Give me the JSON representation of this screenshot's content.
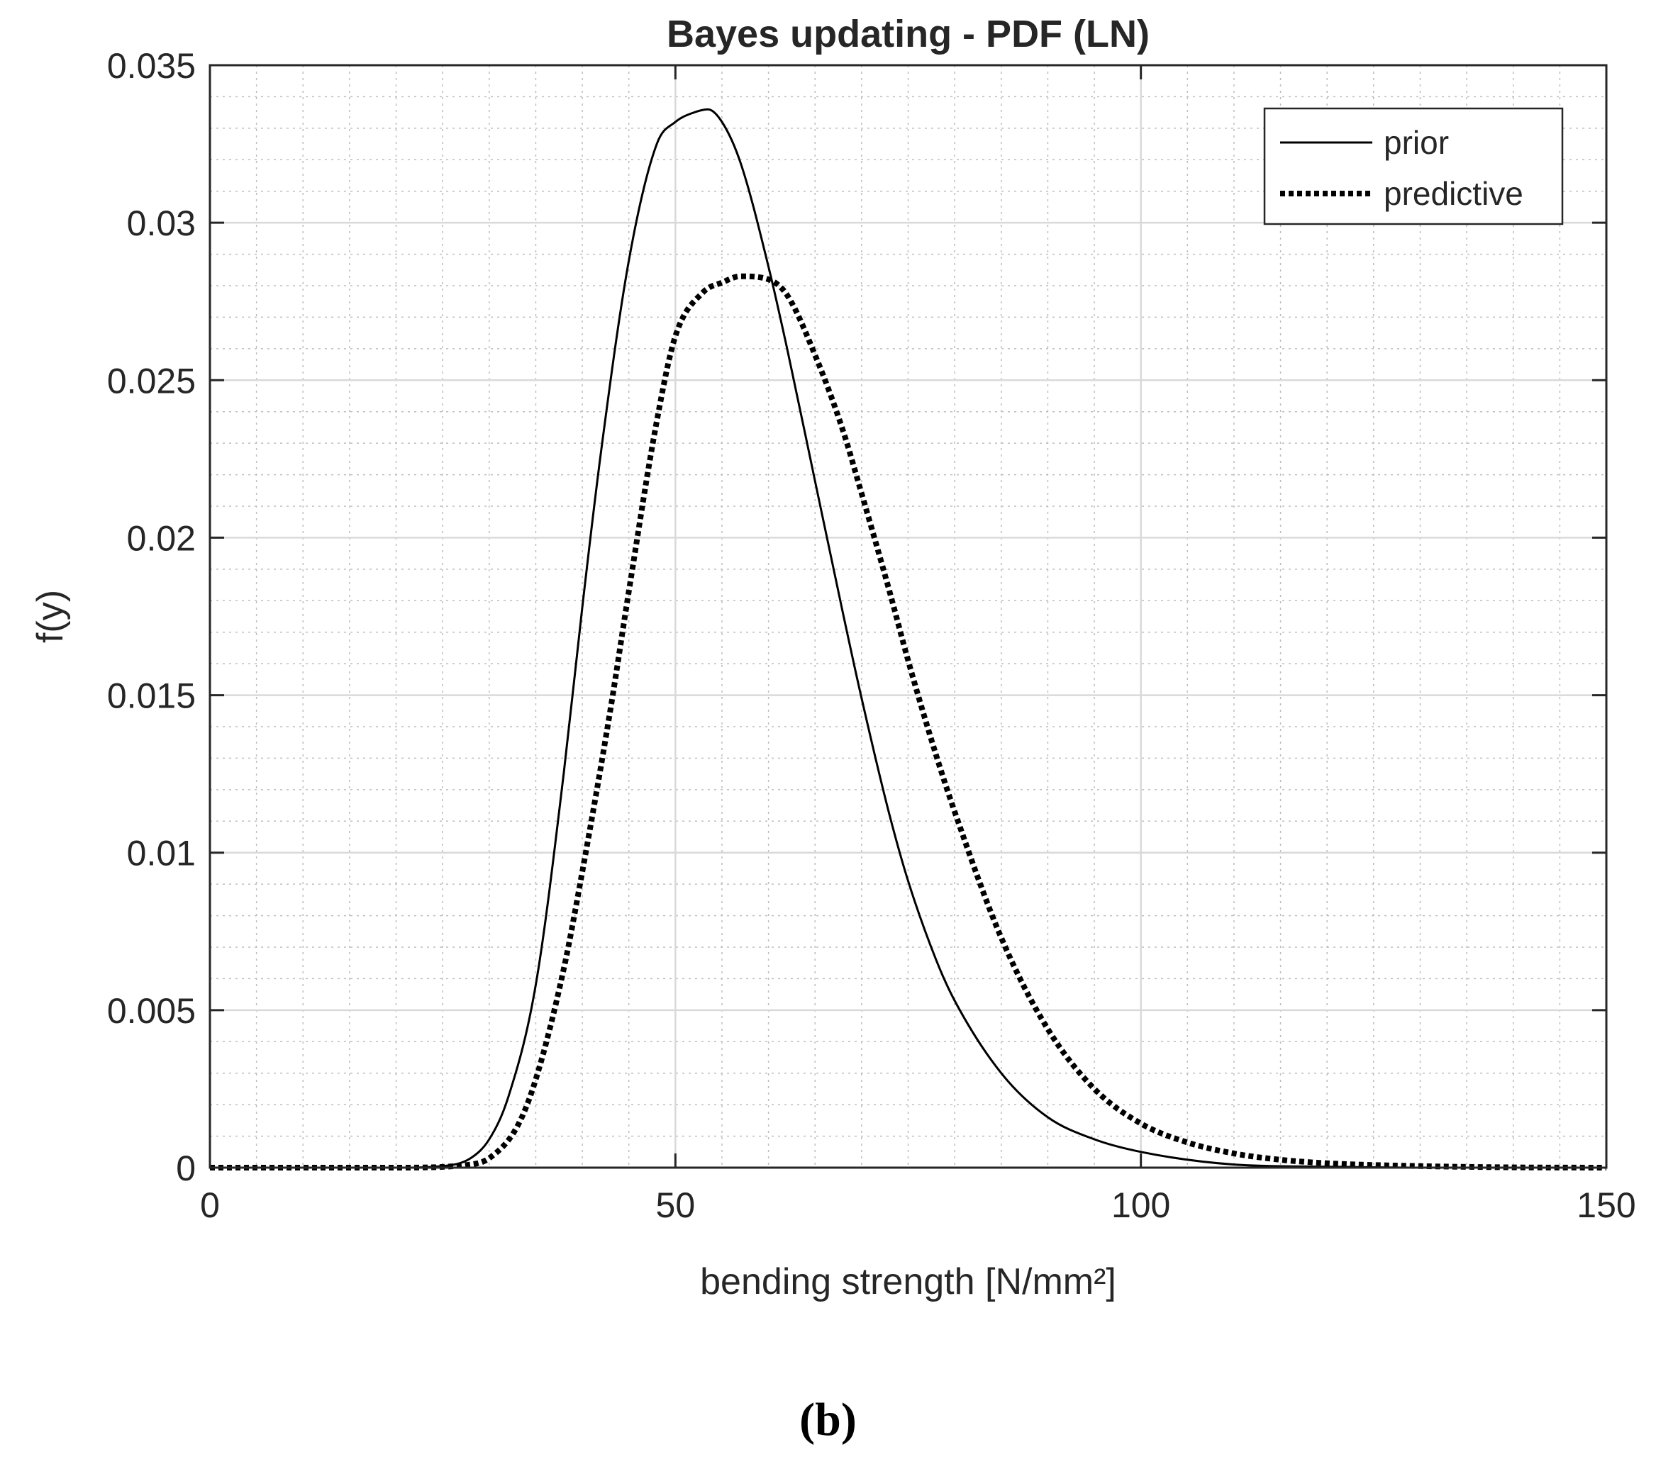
{
  "chart_data": {
    "type": "line",
    "title": "Bayes updating - PDF (LN)",
    "xlabel": "bending strength [N/mm²]",
    "ylabel": "f(y)",
    "xlim": [
      0,
      150
    ],
    "ylim": [
      0,
      0.035
    ],
    "x_ticks": [
      "0",
      "50",
      "100",
      "150"
    ],
    "y_ticks": [
      "0",
      "0.005",
      "0.01",
      "0.015",
      "0.02",
      "0.025",
      "0.03",
      "0.035"
    ],
    "grid": true,
    "minor_grid": true,
    "legend_position": "top-right",
    "series": [
      {
        "name": "prior",
        "style": "solid",
        "color": "#000000",
        "x": [
          0,
          10,
          20,
          25,
          28,
          30,
          32,
          35,
          38,
          40,
          42,
          45,
          48,
          50,
          52,
          53.5,
          55,
          57,
          60,
          62,
          65,
          68,
          70,
          73,
          75,
          78,
          80,
          85,
          90,
          95,
          100,
          110,
          120,
          130,
          150
        ],
        "y": [
          0,
          0,
          0,
          5e-05,
          0.0003,
          0.0009,
          0.0022,
          0.0058,
          0.0125,
          0.0178,
          0.0227,
          0.0288,
          0.0325,
          0.0332,
          0.0335,
          0.0336,
          0.0332,
          0.0319,
          0.0286,
          0.026,
          0.0218,
          0.0176,
          0.0149,
          0.0112,
          0.0091,
          0.0066,
          0.0053,
          0.003,
          0.0016,
          0.0009,
          0.0005,
          0.0001,
          3e-05,
          0,
          0
        ]
      },
      {
        "name": "predictive",
        "style": "dotted",
        "color": "#000000",
        "x": [
          0,
          20,
          28,
          30,
          33,
          35,
          38,
          40,
          43,
          45,
          48,
          50,
          53,
          55,
          57,
          60,
          62,
          65,
          68,
          70,
          73,
          75,
          78,
          80,
          85,
          90,
          95,
          100,
          105,
          110,
          115,
          120,
          130,
          140,
          150
        ],
        "y": [
          0,
          0,
          0.0001,
          0.0003,
          0.0013,
          0.0028,
          0.0063,
          0.0094,
          0.0145,
          0.0183,
          0.0237,
          0.0264,
          0.0278,
          0.0281,
          0.0283,
          0.0282,
          0.0277,
          0.0258,
          0.0234,
          0.0214,
          0.0183,
          0.0161,
          0.0131,
          0.0113,
          0.0073,
          0.0044,
          0.0025,
          0.0014,
          0.0008,
          0.00045,
          0.00025,
          0.00014,
          5e-05,
          1e-05,
          0
        ]
      }
    ],
    "legend": {
      "entries": [
        "prior",
        "predictive"
      ]
    }
  },
  "caption": "(b)"
}
